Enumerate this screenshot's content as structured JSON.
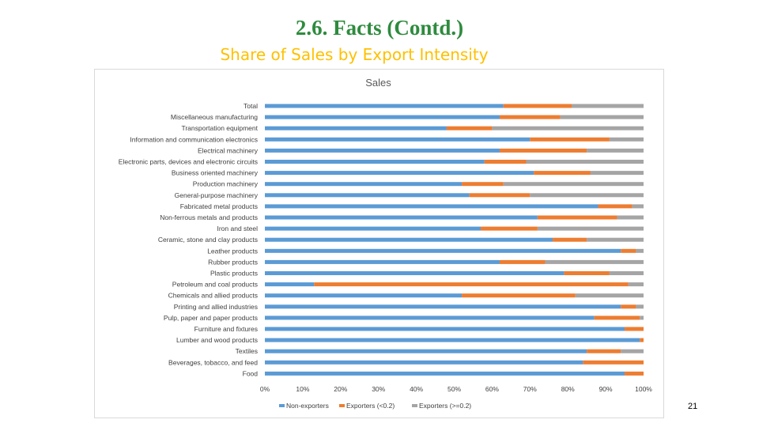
{
  "slide": {
    "title": "2.6. Facts (Contd.)",
    "subtitle": "Share of Sales by Export Intensity",
    "title_color": "#2e8b3e",
    "subtitle_color": "#ffc000",
    "page_number": "21"
  },
  "chart_data": {
    "type": "bar",
    "orientation": "horizontal",
    "stacked": true,
    "title": "Sales",
    "categories": [
      "Total",
      "Miscellaneous manufacturing",
      "Transportation equipment",
      "Information and communication electronics",
      "Electrical machinery",
      "Electronic parts, devices and electronic circuits",
      "Business oriented machinery",
      "Production machinery",
      "General-purpose machinery",
      "Fabricated metal products",
      "Non-ferrous metals and products",
      "Iron and steel",
      "Ceramic, stone and clay products",
      "Leather products",
      "Rubber products",
      "Plastic products",
      "Petroleum and coal products",
      "Chemicals and allied products",
      "Printing and allied industries",
      "Pulp, paper and paper products",
      "Furniture and fixtures",
      "Lumber and wood products",
      "Textiles",
      "Beverages, tobacco, and feed",
      "Food"
    ],
    "series": [
      {
        "name": "Non-exporters",
        "color": "#5b9bd5",
        "values": [
          63,
          62,
          48,
          70,
          62,
          58,
          71,
          52,
          54,
          88,
          72,
          57,
          76,
          94,
          62,
          79,
          13,
          52,
          94,
          87,
          95,
          99,
          85,
          84,
          95
        ]
      },
      {
        "name": "Exporters (<0.2)",
        "color": "#ed7d31",
        "values": [
          18,
          16,
          12,
          21,
          23,
          11,
          15,
          11,
          16,
          9,
          21,
          15,
          9,
          4,
          12,
          12,
          83,
          30,
          4,
          12,
          5,
          1,
          9,
          16,
          5
        ]
      },
      {
        "name": "Exporters (>=0.2)",
        "color": "#a5a5a5",
        "values": [
          19,
          22,
          40,
          9,
          15,
          31,
          14,
          37,
          30,
          3,
          7,
          28,
          15,
          2,
          26,
          9,
          4,
          18,
          2,
          1,
          0,
          0,
          6,
          0,
          0
        ]
      }
    ],
    "x_ticks": [
      "0%",
      "10%",
      "20%",
      "30%",
      "40%",
      "50%",
      "60%",
      "70%",
      "80%",
      "90%",
      "100%"
    ],
    "xlim": [
      0,
      100
    ],
    "grid": false,
    "legend_position": "bottom"
  }
}
